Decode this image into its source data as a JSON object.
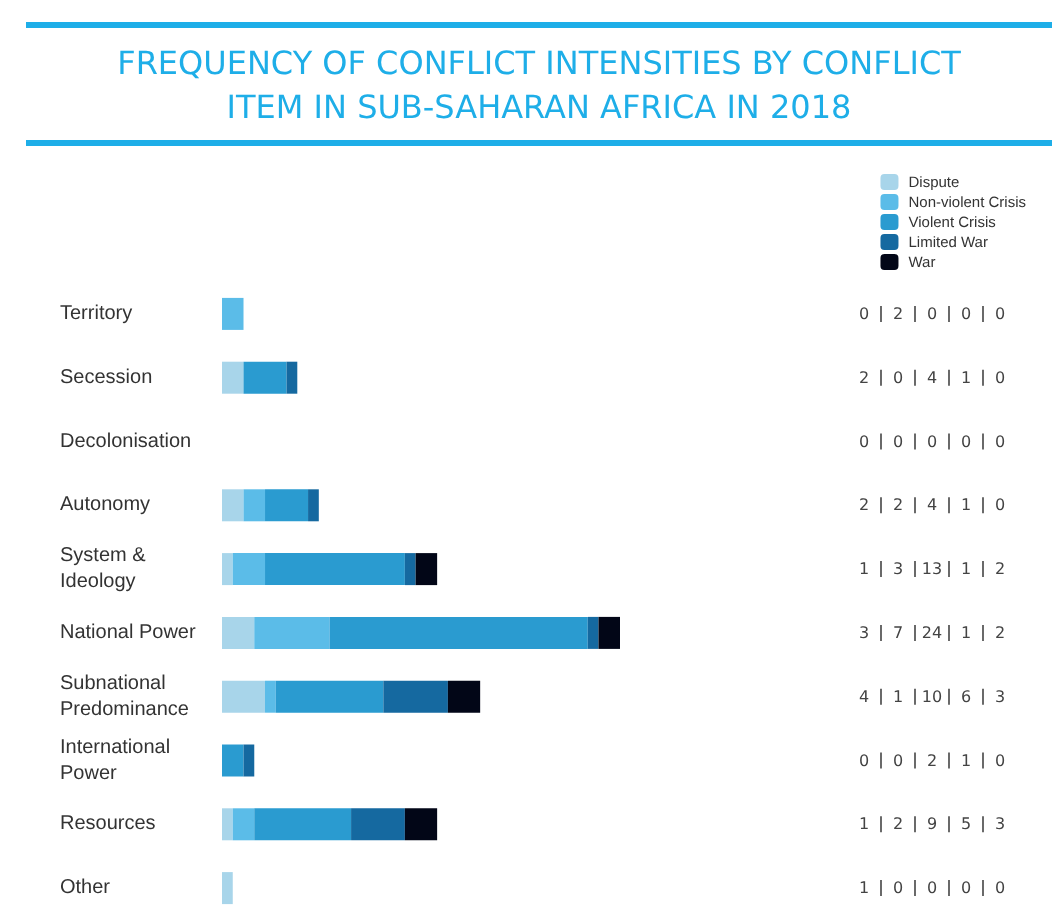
{
  "chart_data": {
    "type": "bar",
    "orientation": "horizontal",
    "stacked": true,
    "title": "FREQUENCY OF CONFLICT INTENSITIES BY CONFLICT ITEM IN SUB-SAHARAN AFRICA IN 2018",
    "categories": [
      "Territory",
      "Secession",
      "Decolonisation",
      "Autonomy",
      "System & Ideology",
      "National Power",
      "Subnational Predominance",
      "International Power",
      "Resources",
      "Other"
    ],
    "series": [
      {
        "name": "Dispute",
        "color": "#a8d5ea",
        "values": [
          0,
          2,
          0,
          2,
          1,
          3,
          4,
          0,
          1,
          1
        ]
      },
      {
        "name": "Non-violent Crisis",
        "color": "#5bbce8",
        "values": [
          2,
          0,
          0,
          2,
          3,
          7,
          1,
          0,
          2,
          0
        ]
      },
      {
        "name": "Violent Crisis",
        "color": "#2a9bd0",
        "values": [
          0,
          4,
          0,
          4,
          13,
          24,
          10,
          2,
          9,
          0
        ]
      },
      {
        "name": "Limited War",
        "color": "#1569a0",
        "values": [
          0,
          1,
          0,
          1,
          1,
          1,
          6,
          1,
          5,
          0
        ]
      },
      {
        "name": "War",
        "color": "#020617",
        "values": [
          0,
          0,
          0,
          0,
          2,
          2,
          3,
          0,
          3,
          0
        ]
      }
    ],
    "data_labels": true,
    "legend": "top right"
  }
}
